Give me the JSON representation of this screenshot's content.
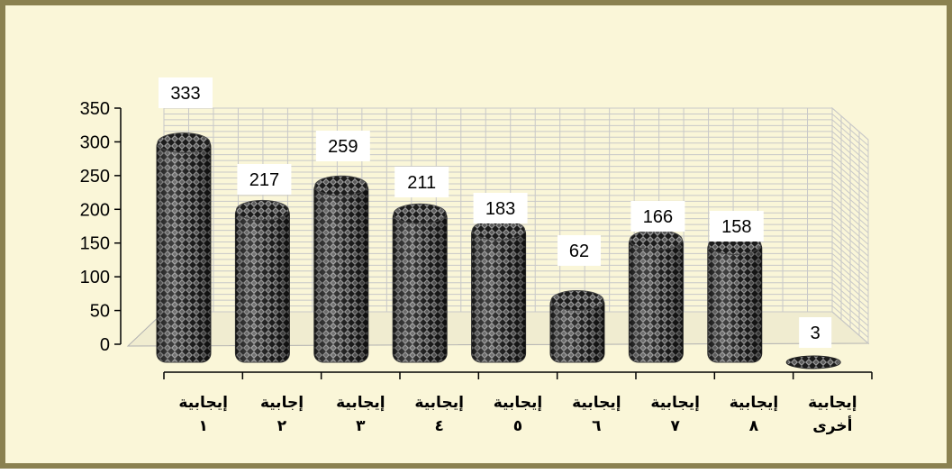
{
  "chart_data": {
    "type": "bar",
    "categories": [
      "إيجابية ١",
      "إجابية ٢",
      "إيجابية ٣",
      "إيجابية ٤",
      "إيجابية ٥",
      "إيجابية ٦",
      "إيجابية ٧",
      "إيجابية ٨",
      "إيجابية أخرى"
    ],
    "category_lines": [
      [
        "إيجابية",
        "١"
      ],
      [
        "إجابية",
        "٢"
      ],
      [
        "إيجابية",
        "٣"
      ],
      [
        "إيجابية",
        "٤"
      ],
      [
        "إيجابية",
        "٥"
      ],
      [
        "إيجابية",
        "٦"
      ],
      [
        "إيجابية",
        "٧"
      ],
      [
        "إيجابية",
        "٨"
      ],
      [
        "إيجابية",
        "أخرى"
      ]
    ],
    "values": [
      333,
      217,
      259,
      211,
      183,
      62,
      166,
      158,
      3
    ],
    "value_labels": [
      "333",
      "217",
      "259",
      "211",
      "183",
      "62",
      "166",
      "158",
      "3"
    ],
    "y_ticks": [
      "0",
      "50",
      "100",
      "150",
      "200",
      "250",
      "300",
      "350"
    ],
    "ylim": [
      0,
      350
    ],
    "title": "",
    "xlabel": "",
    "ylabel": "",
    "grid": true,
    "legend": false,
    "colors": {
      "background": "#faf6d8",
      "frame": "#8a8150",
      "grid": "#c8c8c8",
      "bar_dark": "#1c1c1c",
      "bar_light": "#9c9c9c"
    }
  }
}
